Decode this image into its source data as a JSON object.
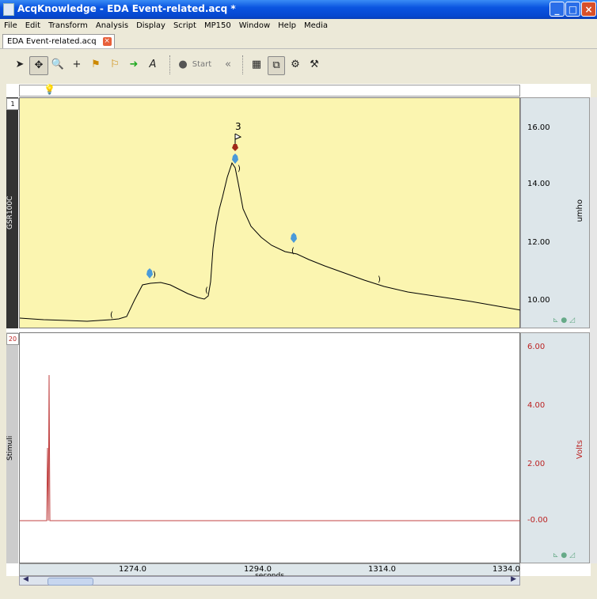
{
  "window": {
    "title": "AcqKnowledge - EDA Event-related.acq *",
    "min": "_",
    "max": "□",
    "close": "×"
  },
  "menu": [
    "File",
    "Edit",
    "Transform",
    "Analysis",
    "Display",
    "Script",
    "MP150",
    "Window",
    "Help",
    "Media"
  ],
  "doc_tab": {
    "label": "EDA Event-related.acq",
    "close": "×"
  },
  "toolbar": {
    "start_label": "Start"
  },
  "channels": [
    {
      "number": "1",
      "name": "GSR100C",
      "unit": "umho",
      "scale": [
        "16.00",
        "14.00",
        "12.00",
        "10.00"
      ]
    },
    {
      "number": "20",
      "name": "Stimuli",
      "unit": "Volts",
      "scale": [
        "6.00",
        "4.00",
        "2.00",
        "-0.00"
      ],
      "color": "#b22222"
    }
  ],
  "event": {
    "label": "3"
  },
  "x_axis": {
    "ticks": [
      "1274.0",
      "1294.0",
      "1314.0",
      "1334.0"
    ],
    "unit": "seconds"
  },
  "colors": {
    "plot_bg": "#fbf5b0",
    "trace": "#000000",
    "stim_trace": "#c04040"
  }
}
